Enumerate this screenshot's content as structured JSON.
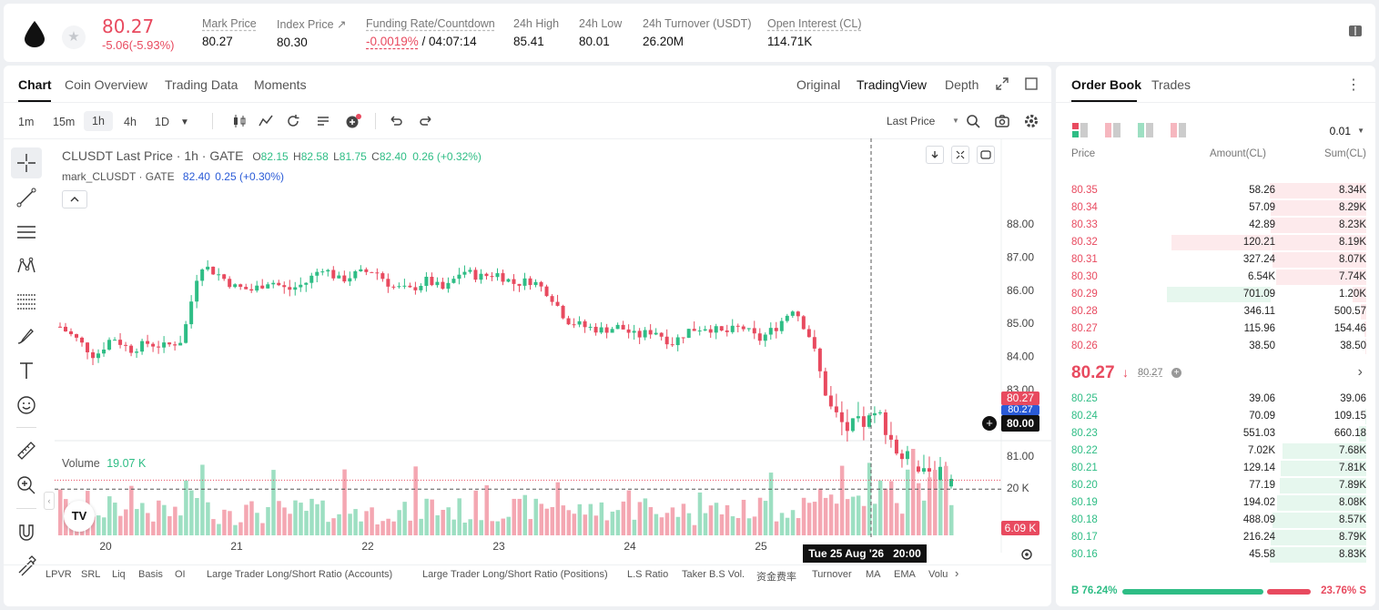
{
  "header": {
    "price": "80.27",
    "change": "-5.06(-5.93%)",
    "stats": [
      {
        "label": "Mark Price",
        "value": "80.27"
      },
      {
        "label": "Index Price ↗",
        "value": "80.30"
      },
      {
        "label": "Funding Rate/Countdown",
        "value_red": "-0.0019%",
        "value_rest": " / 04:07:14"
      },
      {
        "label": "24h High",
        "value": "85.41"
      },
      {
        "label": "24h Low",
        "value": "80.01"
      },
      {
        "label": "24h Turnover (USDT)",
        "value": "26.20M"
      },
      {
        "label": "Open Interest (CL)",
        "value": "114.71K"
      }
    ]
  },
  "chart_tabs": [
    "Chart",
    "Coin Overview",
    "Trading Data",
    "Moments"
  ],
  "view_tabs": [
    "Original",
    "TradingView",
    "Depth"
  ],
  "timeframes": [
    "1m",
    "15m",
    "1h",
    "4h",
    "1D"
  ],
  "price_source": "Last Price",
  "legend": {
    "main_title": "CLUSDT Last Price · 1h · GATE",
    "o_label": "O",
    "o_val": "82.15",
    "h_label": "H",
    "h_val": "82.58",
    "l_label": "L",
    "l_val": "81.75",
    "c_label": "C",
    "c_val": "82.40",
    "change": "0.26 (+0.32%)",
    "mark_title": "mark_CLUSDT · GATE",
    "mark_val": "82.40",
    "mark_chg": "0.25 (+0.30%)",
    "volume_label": "Volume",
    "volume_val": "19.07 K"
  },
  "chart_data": {
    "type": "candlestick",
    "x_ticks": [
      "20",
      "21",
      "22",
      "23",
      "24",
      "25"
    ],
    "y_ticks": [
      "88.00",
      "87.00",
      "86.00",
      "85.00",
      "84.00",
      "83.00",
      "82.00",
      "81.00"
    ],
    "ylim": [
      80.0,
      88.0
    ],
    "current_price": "80.27",
    "mark_price_label": "80.27",
    "crosshair_price": "80.00",
    "crosshair_time": "Tue 25 Aug '26   20:00",
    "volume_tick": "20 K",
    "volume_current": "6.09 K",
    "closes_approx": [
      84.9,
      84.5,
      84.0,
      84.6,
      84.2,
      84.4,
      84.3,
      84.5,
      86.8,
      86.5,
      86.1,
      86.0,
      86.3,
      86.0,
      86.2,
      86.7,
      86.3,
      86.5,
      86.6,
      86.1,
      86.0,
      86.3,
      86.0,
      86.6,
      86.4,
      86.5,
      86.2,
      86.3,
      85.9,
      85.1,
      84.9,
      84.8,
      84.9,
      84.6,
      84.8,
      84.4,
      84.8,
      84.9,
      84.7,
      84.9,
      84.5,
      84.9,
      85.5,
      84.5,
      82.5,
      81.8,
      82.0,
      82.2,
      81.0,
      80.8,
      80.5,
      80.27
    ]
  },
  "indicators": [
    "LPVR",
    "SRL",
    "Liq",
    "Basis",
    "OI",
    "Large Trader Long/Short Ratio (Accounts)",
    "Large Trader Long/Short Ratio (Positions)",
    "L.S Ratio",
    "Taker B.S Vol.",
    "资金费率",
    "Turnover",
    "MA",
    "EMA",
    "Volu"
  ],
  "orderbook": {
    "tabs": [
      "Order Book",
      "Trades"
    ],
    "precision": "0.01",
    "headers": [
      "Price",
      "Amount(CL)",
      "Sum(CL)"
    ],
    "asks": [
      {
        "price": "80.35",
        "amount": "58.26",
        "sum": "8.34K",
        "depth": 1.0,
        "amt": 0
      },
      {
        "price": "80.34",
        "amount": "57.09",
        "sum": "8.29K",
        "depth": 0.99,
        "amt": 0
      },
      {
        "price": "80.33",
        "amount": "42.89",
        "sum": "8.23K",
        "depth": 0.99,
        "amt": 0
      },
      {
        "price": "80.32",
        "amount": "120.21",
        "sum": "8.19K",
        "depth": 0.98,
        "amt": 0.42
      },
      {
        "price": "80.31",
        "amount": "327.24",
        "sum": "8.07K",
        "depth": 0.97,
        "amt": 0
      },
      {
        "price": "80.30",
        "amount": "6.54K",
        "sum": "7.74K",
        "depth": 0.93,
        "amt": 0
      },
      {
        "price": "80.29",
        "amount": "701.09",
        "sum": "1.20K",
        "depth": 0.14,
        "amt": 0.46
      },
      {
        "price": "80.28",
        "amount": "346.11",
        "sum": "500.57",
        "depth": 0.06,
        "amt": 0
      },
      {
        "price": "80.27",
        "amount": "115.96",
        "sum": "154.46",
        "depth": 0.02,
        "amt": 0
      },
      {
        "price": "80.26",
        "amount": "38.50",
        "sum": "38.50",
        "depth": 0.01,
        "amt": 0
      }
    ],
    "mid_price": "80.27",
    "mid_mark": "80.27",
    "bids": [
      {
        "price": "80.25",
        "amount": "39.06",
        "sum": "39.06",
        "depth": 0.0
      },
      {
        "price": "80.24",
        "amount": "70.09",
        "sum": "109.15",
        "depth": 0.01
      },
      {
        "price": "80.23",
        "amount": "551.03",
        "sum": "660.18",
        "depth": 0.08
      },
      {
        "price": "80.22",
        "amount": "7.02K",
        "sum": "7.68K",
        "depth": 0.87
      },
      {
        "price": "80.21",
        "amount": "129.14",
        "sum": "7.81K",
        "depth": 0.89
      },
      {
        "price": "80.20",
        "amount": "77.19",
        "sum": "7.89K",
        "depth": 0.9
      },
      {
        "price": "80.19",
        "amount": "194.02",
        "sum": "8.08K",
        "depth": 0.92
      },
      {
        "price": "80.18",
        "amount": "488.09",
        "sum": "8.57K",
        "depth": 0.97
      },
      {
        "price": "80.17",
        "amount": "216.24",
        "sum": "8.79K",
        "depth": 0.99
      },
      {
        "price": "80.16",
        "amount": "45.58",
        "sum": "8.83K",
        "depth": 1.0
      }
    ],
    "buy_pct": "B 76.24%",
    "sell_pct": "23.76% S",
    "buy_ratio": 0.7624
  },
  "colors": {
    "up": "#2ebd85",
    "down": "#e84a5f"
  }
}
